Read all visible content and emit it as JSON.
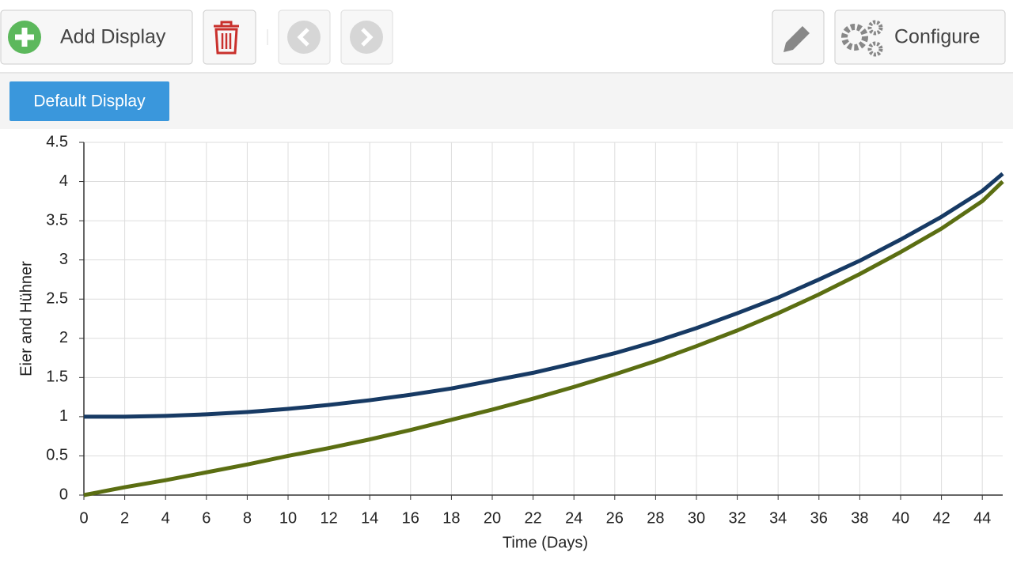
{
  "toolbar": {
    "add_display": "Add Display",
    "configure": "Configure"
  },
  "tabs": {
    "active": "Default Display"
  },
  "chart_data": {
    "type": "line",
    "x_label": "Time (Days)",
    "y_label": "Eier and Hühner",
    "x": [
      0,
      2,
      4,
      6,
      8,
      10,
      12,
      14,
      16,
      18,
      20,
      22,
      24,
      26,
      28,
      30,
      32,
      34,
      36,
      38,
      40,
      42,
      44,
      45
    ],
    "series": [
      {
        "color": "#173a64",
        "values": [
          1,
          1.0,
          1.01,
          1.03,
          1.06,
          1.1,
          1.15,
          1.21,
          1.28,
          1.36,
          1.46,
          1.56,
          1.68,
          1.81,
          1.96,
          2.13,
          2.32,
          2.52,
          2.75,
          2.99,
          3.26,
          3.55,
          3.88,
          4.1
        ]
      },
      {
        "color": "#5b6e12",
        "values": [
          0,
          0.1,
          0.19,
          0.29,
          0.39,
          0.5,
          0.6,
          0.71,
          0.83,
          0.96,
          1.09,
          1.23,
          1.38,
          1.54,
          1.71,
          1.9,
          2.1,
          2.32,
          2.56,
          2.82,
          3.1,
          3.4,
          3.75,
          4.0
        ]
      }
    ],
    "xlim": [
      0,
      45
    ],
    "xticks": [
      0,
      2,
      4,
      6,
      8,
      10,
      12,
      14,
      16,
      18,
      20,
      22,
      24,
      26,
      28,
      30,
      32,
      34,
      36,
      38,
      40,
      42,
      44
    ],
    "ylim": [
      0,
      4.5
    ],
    "yticks": [
      0,
      0.5,
      1,
      1.5,
      2,
      2.5,
      3,
      3.5,
      4,
      4.5
    ],
    "grid": true
  }
}
